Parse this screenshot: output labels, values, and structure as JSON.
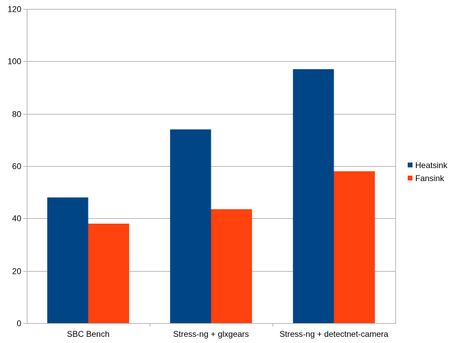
{
  "chart_data": {
    "type": "bar",
    "title": "",
    "xlabel": "",
    "ylabel": "",
    "categories": [
      "SBC Bench",
      "Stress-ng + glxgears",
      "Stress-ng + detectnet-camera"
    ],
    "series": [
      {
        "name": "Heatsink",
        "values": [
          48,
          74,
          97
        ],
        "color": "#004586"
      },
      {
        "name": "Fansink",
        "values": [
          38,
          43.5,
          58
        ],
        "color": "#ff420e"
      }
    ],
    "ylim": [
      0,
      120
    ],
    "yticks": [
      0,
      20,
      40,
      60,
      80,
      100,
      120
    ],
    "grid": true,
    "legend_position": "right"
  }
}
